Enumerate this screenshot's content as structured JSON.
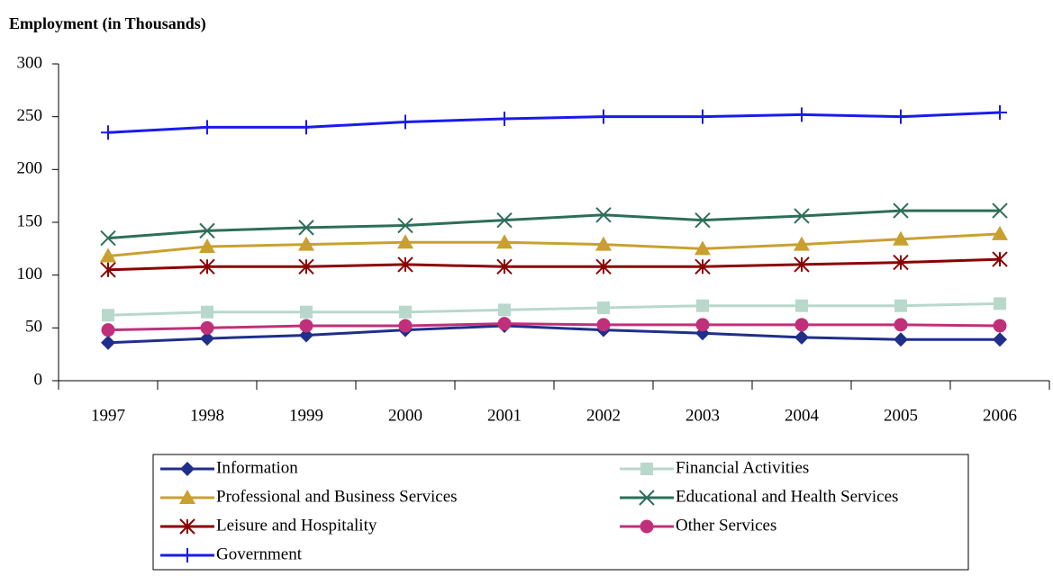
{
  "chart_data": {
    "type": "line",
    "title": "Employment (in Thousands)",
    "categories": [
      "1997",
      "1998",
      "1999",
      "2000",
      "2001",
      "2002",
      "2003",
      "2004",
      "2005",
      "2006"
    ],
    "ylim": [
      0,
      300
    ],
    "yticks": [
      0,
      50,
      100,
      150,
      200,
      250,
      300
    ],
    "grid": false,
    "legend": "bottom",
    "series": [
      {
        "name": "Information",
        "color": "#1f2f8a",
        "marker": "diamond",
        "values": [
          36,
          40,
          43,
          48,
          52,
          48,
          45,
          41,
          39,
          39
        ]
      },
      {
        "name": "Financial Activities",
        "color": "#b8d8cc",
        "marker": "square",
        "values": [
          62,
          65,
          65,
          65,
          67,
          69,
          71,
          71,
          71,
          73
        ]
      },
      {
        "name": "Professional and Business Services",
        "color": "#c9a030",
        "marker": "triangle",
        "values": [
          118,
          127,
          129,
          131,
          131,
          129,
          125,
          129,
          134,
          139
        ]
      },
      {
        "name": "Educational and Health Services",
        "color": "#2d6e5a",
        "marker": "x",
        "values": [
          135,
          142,
          145,
          147,
          152,
          157,
          152,
          156,
          161,
          161
        ]
      },
      {
        "name": "Leisure and Hospitality",
        "color": "#8b0000",
        "marker": "asterisk",
        "values": [
          105,
          108,
          108,
          110,
          108,
          108,
          108,
          110,
          112,
          115
        ]
      },
      {
        "name": "Other Services",
        "color": "#c0307a",
        "marker": "circle",
        "values": [
          48,
          50,
          52,
          52,
          54,
          53,
          53,
          53,
          53,
          52
        ]
      },
      {
        "name": "Government",
        "color": "#1a1aee",
        "marker": "plus",
        "values": [
          235,
          240,
          240,
          245,
          248,
          250,
          250,
          252,
          250,
          254
        ]
      }
    ]
  }
}
